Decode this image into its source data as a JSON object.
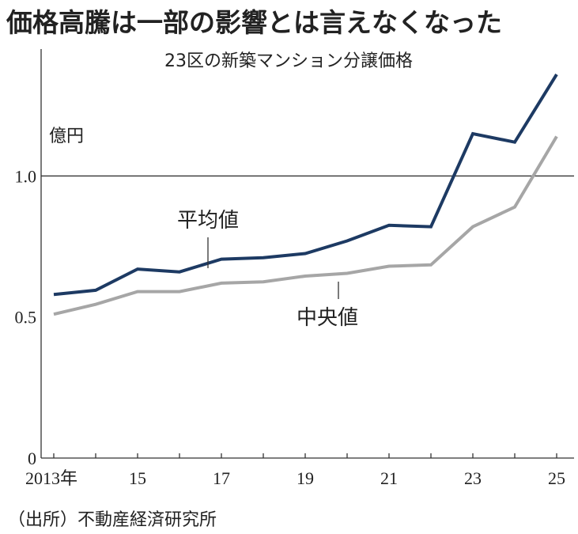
{
  "headline": "価格高騰は一部の影響とは言えなくなった",
  "source": "（出所）不動産経済研究所",
  "colors": {
    "mean": "#1d3a63",
    "median": "#a6a6a6",
    "axis": "#333333"
  },
  "chart_data": {
    "type": "line",
    "title": "23区の新築マンション分譲価格",
    "ylabel": "億円",
    "x": [
      2013,
      2014,
      2015,
      2016,
      2017,
      2018,
      2019,
      2020,
      2021,
      2022,
      2023,
      2024,
      2025
    ],
    "x_tick_labels": [
      {
        "x": 2013,
        "label": "2013年"
      },
      {
        "x": 2015,
        "label": "15"
      },
      {
        "x": 2017,
        "label": "17"
      },
      {
        "x": 2019,
        "label": "19"
      },
      {
        "x": 2021,
        "label": "21"
      },
      {
        "x": 2023,
        "label": "23"
      },
      {
        "x": 2025,
        "label": "25"
      }
    ],
    "y_ticks": [
      {
        "value": 0,
        "label": "0"
      },
      {
        "value": 0.5,
        "label": "0.5"
      },
      {
        "value": 1.0,
        "label": "1.0"
      }
    ],
    "ylim": [
      0,
      1.45
    ],
    "reference_line": 1.0,
    "series": [
      {
        "name": "平均値",
        "key": "mean",
        "values": [
          0.58,
          0.595,
          0.67,
          0.66,
          0.705,
          0.71,
          0.725,
          0.77,
          0.825,
          0.82,
          1.15,
          1.12,
          1.36
        ]
      },
      {
        "name": "中央値",
        "key": "median",
        "values": [
          0.51,
          0.545,
          0.59,
          0.59,
          0.62,
          0.625,
          0.645,
          0.655,
          0.68,
          0.685,
          0.82,
          0.89,
          1.14
        ]
      }
    ]
  }
}
